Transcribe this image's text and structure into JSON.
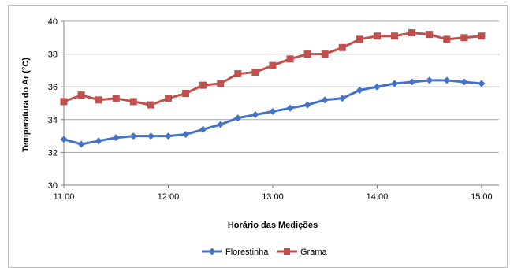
{
  "chart_data": {
    "type": "line",
    "title": "",
    "xlabel": "Horário das Medições",
    "ylabel": "Temperatura do Ar (°C)",
    "ylim": [
      30,
      40
    ],
    "yticks": [
      "30",
      "32",
      "34",
      "36",
      "38",
      "40"
    ],
    "xticks": [
      "11:00",
      "12:00",
      "13:00",
      "14:00",
      "15:00"
    ],
    "xlim_hours": [
      11.0,
      15.1667
    ],
    "x": [
      "11:00",
      "11:10",
      "11:20",
      "11:30",
      "11:40",
      "11:50",
      "12:00",
      "12:10",
      "12:20",
      "12:30",
      "12:40",
      "12:50",
      "13:00",
      "13:10",
      "13:20",
      "13:30",
      "13:40",
      "13:50",
      "14:00",
      "14:10",
      "14:20",
      "14:30",
      "14:40",
      "14:50",
      "15:00"
    ],
    "grid": "horizontal",
    "legend_position": "bottom",
    "series": [
      {
        "name": "Florestinha",
        "color": "#4472c4",
        "marker": "diamond",
        "values": [
          32.8,
          32.5,
          32.7,
          32.9,
          33.0,
          33.0,
          33.0,
          33.1,
          33.4,
          33.7,
          34.1,
          34.3,
          34.5,
          34.7,
          34.9,
          35.2,
          35.3,
          35.8,
          36.0,
          36.2,
          36.3,
          36.4,
          36.4,
          36.3,
          36.2
        ]
      },
      {
        "name": "Grama",
        "color": "#c0504d",
        "marker": "square",
        "values": [
          35.1,
          35.5,
          35.2,
          35.3,
          35.1,
          34.9,
          35.3,
          35.6,
          36.1,
          36.2,
          36.8,
          36.9,
          37.3,
          37.7,
          38.0,
          38.0,
          38.4,
          38.9,
          39.1,
          39.1,
          39.3,
          39.2,
          38.9,
          39.0,
          39.1
        ]
      }
    ]
  }
}
